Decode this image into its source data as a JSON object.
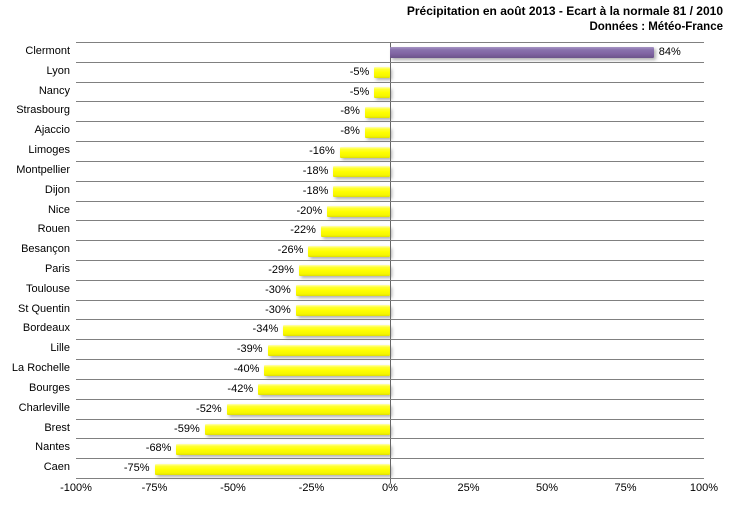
{
  "title": {
    "line1": "Précipitation en août 2013 - Ecart à la normale 81 / 2010",
    "line2": "Données : Météo-France"
  },
  "chart_data": {
    "type": "bar",
    "orientation": "horizontal",
    "title": "Précipitation en août 2013 - Ecart à la normale 81 / 2010",
    "subtitle": "Données : Météo-France",
    "categories": [
      "Clermont",
      "Lyon",
      "Nancy",
      "Strasbourg",
      "Ajaccio",
      "Limoges",
      "Montpellier",
      "Dijon",
      "Nice",
      "Rouen",
      "Besançon",
      "Paris",
      "Toulouse",
      "St Quentin",
      "Bordeaux",
      "Lille",
      "La Rochelle",
      "Bourges",
      "Charleville",
      "Brest",
      "Nantes",
      "Caen"
    ],
    "values": [
      84,
      -5,
      -5,
      -8,
      -8,
      -16,
      -18,
      -18,
      -20,
      -22,
      -26,
      -29,
      -30,
      -30,
      -34,
      -39,
      -40,
      -42,
      -52,
      -59,
      -68,
      -75
    ],
    "value_suffix": "%",
    "xlabel": "",
    "ylabel": "",
    "xlim": [
      -100,
      100
    ],
    "x_tick_values": [
      -100,
      -75,
      -50,
      -25,
      0,
      25,
      50,
      75,
      100
    ],
    "x_tick_labels": [
      "-100%",
      "-75%",
      "-50%",
      "-25%",
      "0%",
      "25%",
      "50%",
      "75%",
      "100%"
    ],
    "grid": "horizontal-category-lines",
    "legend": "none",
    "colors": {
      "bar_default": "#FFFF00",
      "bar_highlight": "#8064A2",
      "highlight_category": "Clermont",
      "gridline": "#808080",
      "zero_axis": "#666666",
      "text": "#000000",
      "background": "#FFFFFF"
    }
  }
}
